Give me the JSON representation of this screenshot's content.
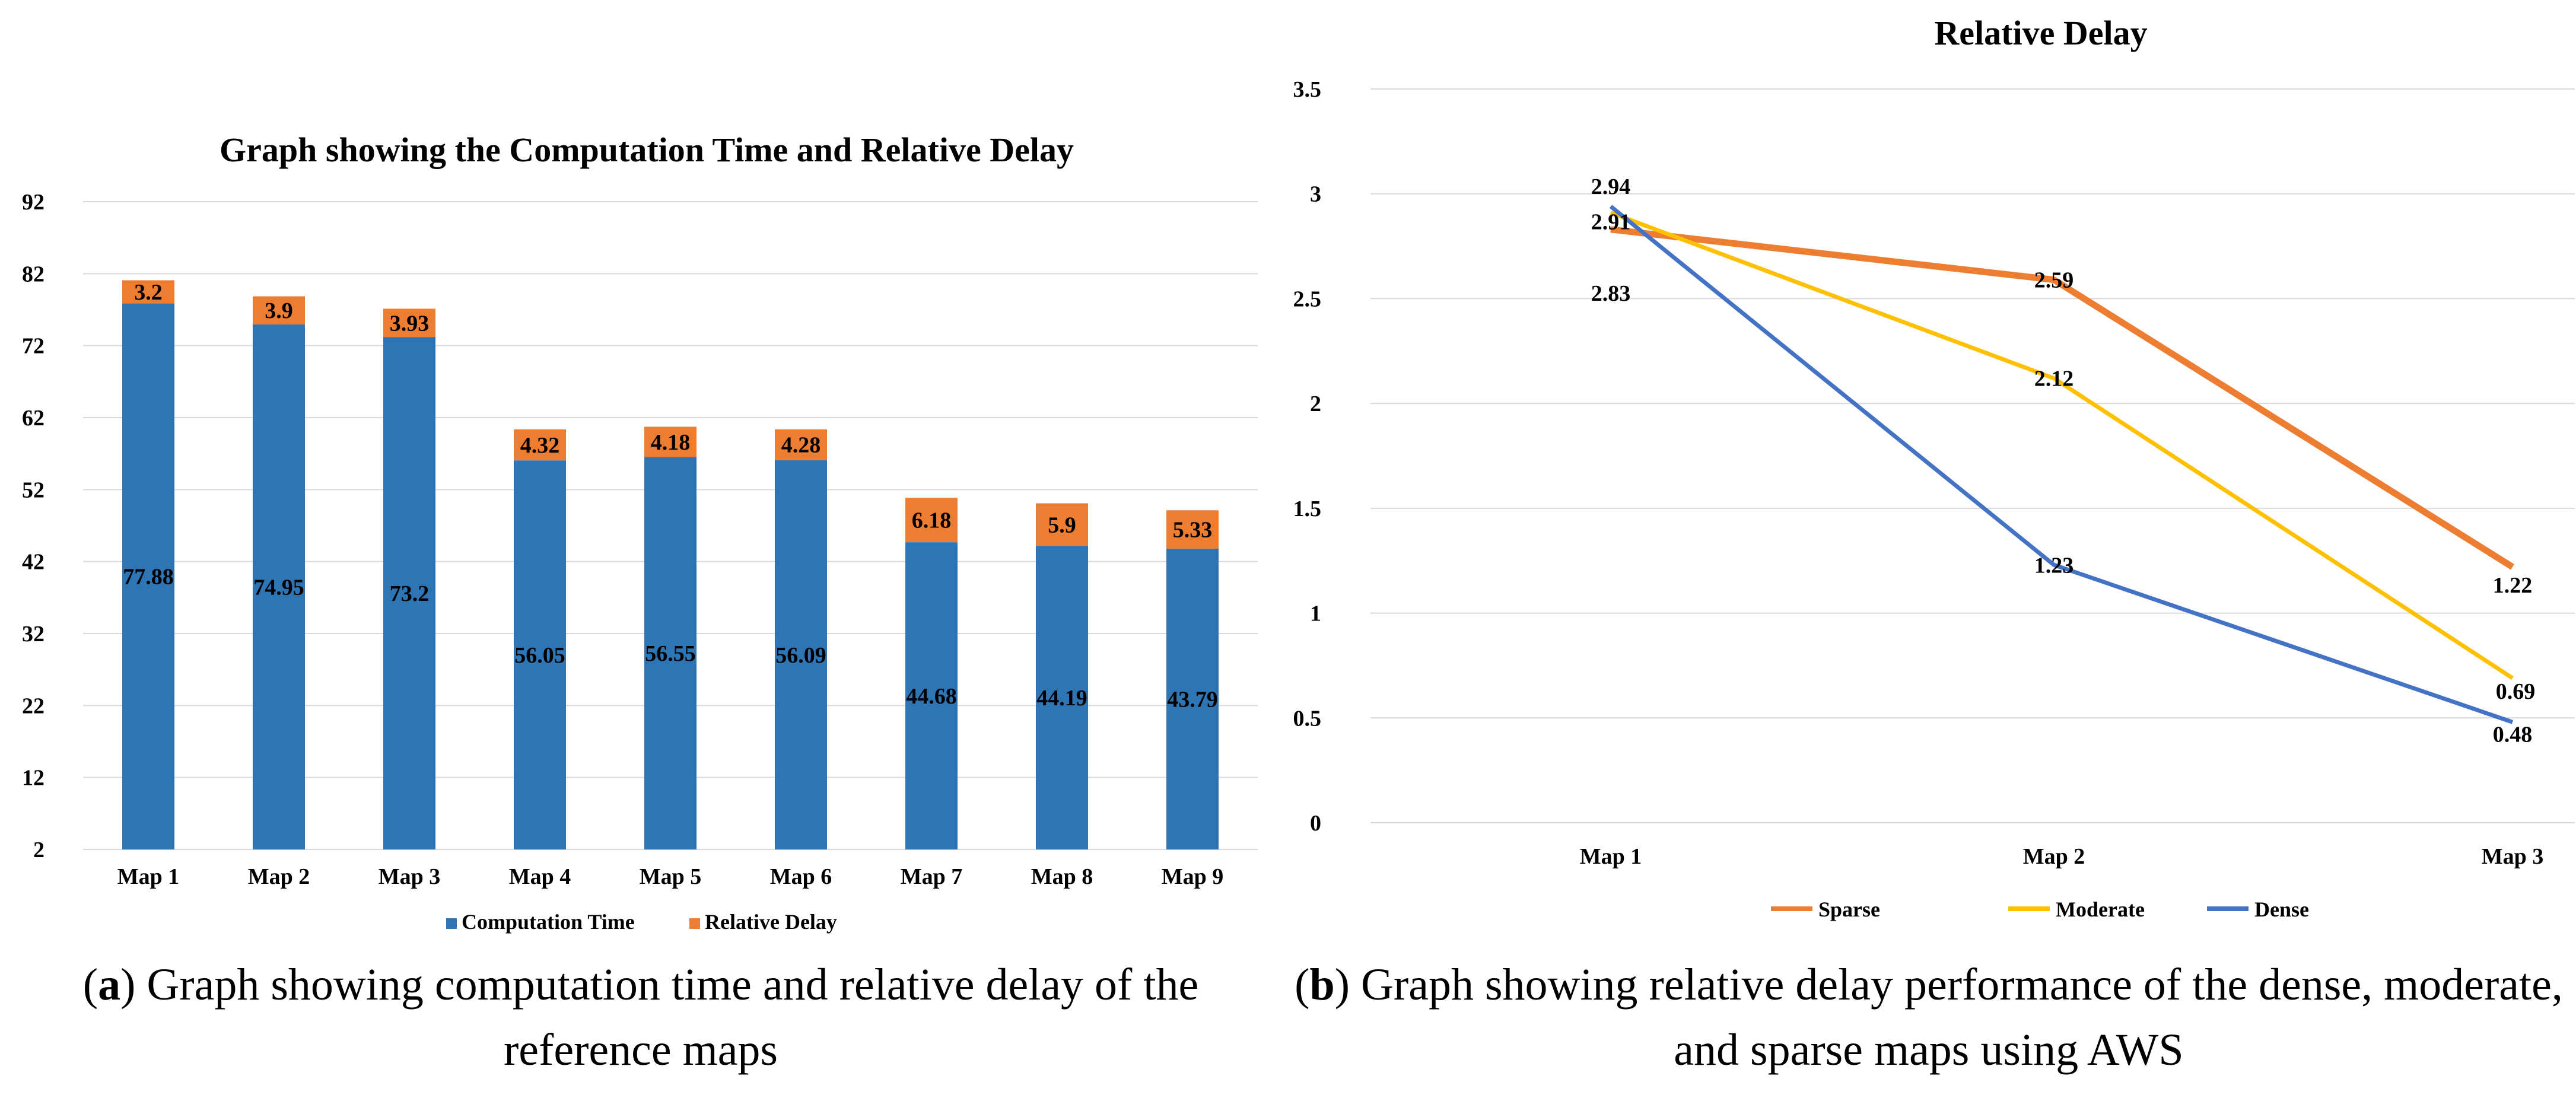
{
  "chart_data": [
    {
      "type": "bar",
      "stacked": true,
      "title": "Graph showing the Computation Time and Relative Delay",
      "categories": [
        "Map 1",
        "Map 2",
        "Map 3",
        "Map 4",
        "Map 5",
        "Map 6",
        "Map 7",
        "Map 8",
        "Map 9"
      ],
      "series": [
        {
          "name": "Computation Time",
          "color": "#2E75B6",
          "values": [
            77.88,
            74.95,
            73.2,
            56.05,
            56.55,
            56.09,
            44.68,
            44.19,
            43.79
          ]
        },
        {
          "name": "Relative Delay",
          "color": "#ED7D31",
          "values": [
            3.2,
            3.9,
            3.93,
            4.32,
            4.18,
            4.28,
            6.18,
            5.9,
            5.33
          ]
        }
      ],
      "yticks": [
        "2",
        "12",
        "22",
        "32",
        "42",
        "52",
        "62",
        "72",
        "82",
        "92"
      ],
      "ylim": [
        2,
        92
      ],
      "xlabel": "",
      "ylabel": "",
      "legend_position": "bottom"
    },
    {
      "type": "line",
      "title": "Relative Delay",
      "categories": [
        "Map 1",
        "Map 2",
        "Map 3"
      ],
      "series": [
        {
          "name": "Sparse",
          "color": "#ED7D31",
          "values": [
            2.83,
            2.59,
            1.22
          ]
        },
        {
          "name": "Moderate",
          "color": "#FFC000",
          "values": [
            2.91,
            2.12,
            0.69
          ]
        },
        {
          "name": "Dense",
          "color": "#4472C4",
          "values": [
            2.94,
            1.23,
            0.48
          ]
        }
      ],
      "yticks": [
        "0",
        "0.5",
        "1",
        "1.5",
        "2",
        "2.5",
        "3",
        "3.5"
      ],
      "ylim": [
        0,
        3.5
      ],
      "xlabel": "",
      "ylabel": "",
      "legend_position": "bottom"
    }
  ],
  "captions": {
    "a_label": "a",
    "a_text": ") Graph showing computation time and relative delay of the reference maps",
    "b_label": "b",
    "b_text": ") Graph showing relative delay performance of the dense, moderate, and sparse maps using AWS"
  }
}
